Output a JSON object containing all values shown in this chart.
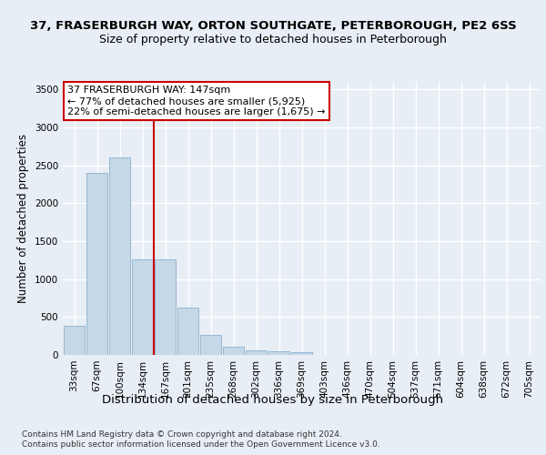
{
  "title_line1": "37, FRASERBURGH WAY, ORTON SOUTHGATE, PETERBOROUGH, PE2 6SS",
  "title_line2": "Size of property relative to detached houses in Peterborough",
  "xlabel": "Distribution of detached houses by size in Peterborough",
  "ylabel": "Number of detached properties",
  "footnote_line1": "Contains HM Land Registry data © Crown copyright and database right 2024.",
  "footnote_line2": "Contains public sector information licensed under the Open Government Licence v3.0.",
  "categories": [
    "33sqm",
    "67sqm",
    "100sqm",
    "134sqm",
    "167sqm",
    "201sqm",
    "235sqm",
    "268sqm",
    "302sqm",
    "336sqm",
    "369sqm",
    "403sqm",
    "436sqm",
    "470sqm",
    "504sqm",
    "537sqm",
    "571sqm",
    "604sqm",
    "638sqm",
    "672sqm",
    "705sqm"
  ],
  "values": [
    390,
    2400,
    2600,
    1260,
    1260,
    630,
    270,
    110,
    55,
    50,
    35,
    0,
    0,
    0,
    0,
    0,
    0,
    0,
    0,
    0,
    0
  ],
  "bar_color": "#c5d8e8",
  "bar_edge_color": "#8ab0cc",
  "vline_x": 3.5,
  "vline_color": "#cc0000",
  "annotation_text": "37 FRASERBURGH WAY: 147sqm\n← 77% of detached houses are smaller (5,925)\n22% of semi-detached houses are larger (1,675) →",
  "annotation_box_color": "#ffffff",
  "annotation_box_edge_color": "#cc0000",
  "ylim": [
    0,
    3600
  ],
  "yticks": [
    0,
    500,
    1000,
    1500,
    2000,
    2500,
    3000,
    3500
  ],
  "bg_color": "#e8eef5",
  "plot_bg_color": "#e8eef5",
  "title1_fontsize": 9.5,
  "title2_fontsize": 9,
  "ylabel_fontsize": 8.5,
  "xlabel_fontsize": 9.5,
  "tick_fontsize": 7.5,
  "annotation_fontsize": 8,
  "footnote_fontsize": 6.5
}
